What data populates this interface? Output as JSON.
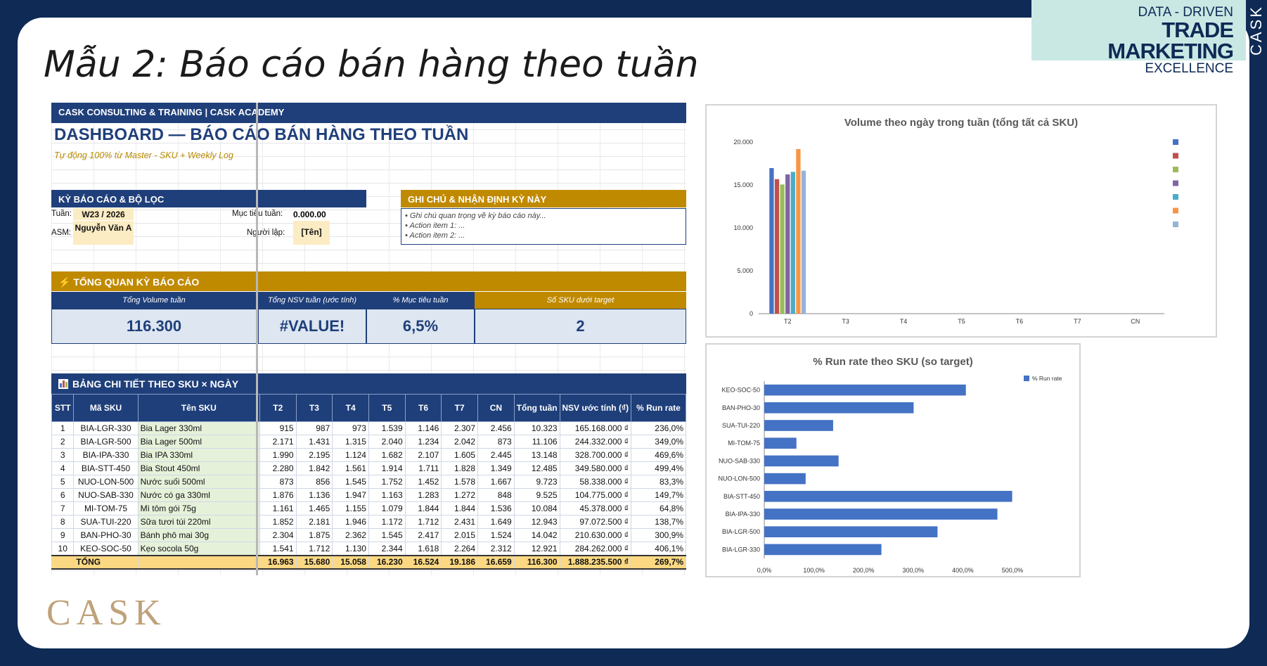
{
  "slide": {
    "title": "Mẫu 2: Báo cáo bán hàng theo tuần",
    "brand": {
      "line1": "DATA - DRIVEN",
      "line2": "TRADE MARKETING",
      "line3": "EXCELLENCE",
      "side_tab": "CASK"
    },
    "logo": "CASK"
  },
  "sheet": {
    "header": "CASK CONSULTING & TRAINING  |  CASK ACADEMY",
    "title": "DASHBOARD — BÁO CÁO BÁN HÀNG THEO TUẦN",
    "subtitle": "Tự động 100% từ Master - SKU + Weekly Log",
    "filters": {
      "section_title": "KỲ BÁO CÁO & BỘ LỌC",
      "week_label": "Tuần:",
      "week_value": "W23 / 2026",
      "asm_label": "ASM:",
      "asm_value": "Nguyễn Văn A",
      "target_label": "Mục tiêu tuần:",
      "target_value": "0.000.00",
      "creator_label": "Người lập:",
      "creator_value": "[Tên]"
    },
    "notes": {
      "section_title": "GHI CHÚ & NHẬN ĐỊNH KỲ NÀY",
      "lines": [
        "• Ghi chú quan trọng về kỳ báo cáo này...",
        "• Action item 1: ...",
        "• Action item 2: ..."
      ]
    },
    "overview": {
      "section_title": "⚡ TỔNG QUAN KỲ BÁO CÁO",
      "kpis": [
        {
          "label": "Tổng Volume tuần",
          "value": "116.300"
        },
        {
          "label": "Tổng NSV tuần (ước tính)",
          "value": "#VALUE!"
        },
        {
          "label": "% Mục tiêu tuần",
          "value": "6,5%"
        },
        {
          "label": "Số SKU dưới target",
          "value": "2"
        }
      ]
    },
    "detail": {
      "section_title": "BẢNG CHI TIẾT THEO SKU × NGÀY",
      "columns": [
        "STT",
        "Mã SKU",
        "Tên SKU",
        "T2",
        "T3",
        "T4",
        "T5",
        "T6",
        "T7",
        "CN",
        "Tổng tuần",
        "NSV ước tính (₫)",
        "% Run rate"
      ],
      "rows": [
        [
          "1",
          "BIA-LGR-330",
          "Bia Lager 330ml",
          "915",
          "987",
          "973",
          "1.539",
          "1.146",
          "2.307",
          "2.456",
          "10.323",
          "165.168.000 ₫",
          "236,0%"
        ],
        [
          "2",
          "BIA-LGR-500",
          "Bia Lager 500ml",
          "2.171",
          "1.431",
          "1.315",
          "2.040",
          "1.234",
          "2.042",
          "873",
          "11.106",
          "244.332.000 ₫",
          "349,0%"
        ],
        [
          "3",
          "BIA-IPA-330",
          "Bia IPA 330ml",
          "1.990",
          "2.195",
          "1.124",
          "1.682",
          "2.107",
          "1.605",
          "2.445",
          "13.148",
          "328.700.000 ₫",
          "469,6%"
        ],
        [
          "4",
          "BIA-STT-450",
          "Bia Stout 450ml",
          "2.280",
          "1.842",
          "1.561",
          "1.914",
          "1.711",
          "1.828",
          "1.349",
          "12.485",
          "349.580.000 ₫",
          "499,4%"
        ],
        [
          "5",
          "NUO-LON-500",
          "Nước suối 500ml",
          "873",
          "856",
          "1.545",
          "1.752",
          "1.452",
          "1.578",
          "1.667",
          "9.723",
          "58.338.000 ₫",
          "83,3%"
        ],
        [
          "6",
          "NUO-SAB-330",
          "Nước có ga 330ml",
          "1.876",
          "1.136",
          "1.947",
          "1.163",
          "1.283",
          "1.272",
          "848",
          "9.525",
          "104.775.000 ₫",
          "149,7%"
        ],
        [
          "7",
          "MI-TOM-75",
          "Mì tôm gói 75g",
          "1.161",
          "1.465",
          "1.155",
          "1.079",
          "1.844",
          "1.844",
          "1.536",
          "10.084",
          "45.378.000 ₫",
          "64,8%"
        ],
        [
          "8",
          "SUA-TUI-220",
          "Sữa tươi túi 220ml",
          "1.852",
          "2.181",
          "1.946",
          "1.172",
          "1.712",
          "2.431",
          "1.649",
          "12.943",
          "97.072.500 ₫",
          "138,7%"
        ],
        [
          "9",
          "BAN-PHO-30",
          "Bánh phô mai 30g",
          "2.304",
          "1.875",
          "2.362",
          "1.545",
          "2.417",
          "2.015",
          "1.524",
          "14.042",
          "210.630.000 ₫",
          "300,9%"
        ],
        [
          "10",
          "KEO-SOC-50",
          "Kẹo socola 50g",
          "1.541",
          "1.712",
          "1.130",
          "2.344",
          "1.618",
          "2.264",
          "2.312",
          "12.921",
          "284.262.000 ₫",
          "406,1%"
        ]
      ],
      "total": [
        "",
        "TỔNG",
        "",
        "16.963",
        "15.680",
        "15.058",
        "16.230",
        "16.524",
        "19.186",
        "16.659",
        "116.300",
        "1.888.235.500 ₫",
        "269,7%"
      ]
    }
  },
  "chart_data": [
    {
      "type": "bar",
      "title": "Volume theo ngày trong tuần (tổng tất cả SKU)",
      "categories": [
        "T2",
        "T3",
        "T4",
        "T5",
        "T6",
        "T7",
        "CN"
      ],
      "ylim": [
        0,
        20000
      ],
      "yticks": [
        "0",
        "5.000",
        "10.000",
        "15.000",
        "20.000"
      ],
      "legend": "right",
      "grid": true,
      "series_colors": [
        "#4472c4",
        "#c0504d",
        "#9bbb59",
        "#8064a2",
        "#4bacc6",
        "#f79646",
        "#95b3d7"
      ],
      "series": [
        {
          "values": [
            16963,
            null,
            null,
            null,
            null,
            null,
            null
          ]
        },
        {
          "values": [
            15680,
            null,
            null,
            null,
            null,
            null,
            null
          ]
        },
        {
          "values": [
            15058,
            null,
            null,
            null,
            null,
            null,
            null
          ]
        },
        {
          "values": [
            16230,
            null,
            null,
            null,
            null,
            null,
            null
          ]
        },
        {
          "values": [
            16524,
            null,
            null,
            null,
            null,
            null,
            null
          ]
        },
        {
          "values": [
            19186,
            null,
            null,
            null,
            null,
            null,
            null
          ]
        },
        {
          "values": [
            16659,
            null,
            null,
            null,
            null,
            null,
            null
          ]
        }
      ]
    },
    {
      "type": "bar",
      "orientation": "horizontal",
      "title": "% Run rate theo SKU (so target)",
      "categories": [
        "KEO-SOC-50",
        "BAN-PHO-30",
        "SUA-TUI-220",
        "MI-TOM-75",
        "NUO-SAB-330",
        "NUO-LON-500",
        "BIA-STT-450",
        "BIA-IPA-330",
        "BIA-LGR-500",
        "BIA-LGR-330"
      ],
      "xlim": [
        0,
        500
      ],
      "xticks": [
        "0,0%",
        "100,0%",
        "200,0%",
        "300,0%",
        "400,0%",
        "500,0%"
      ],
      "legend": "top-right",
      "color": "#4472c4",
      "series": [
        {
          "name": "% Run rate",
          "values": [
            406.1,
            300.9,
            138.7,
            64.8,
            149.7,
            83.3,
            499.4,
            469.6,
            349.0,
            236.0
          ]
        }
      ]
    }
  ]
}
